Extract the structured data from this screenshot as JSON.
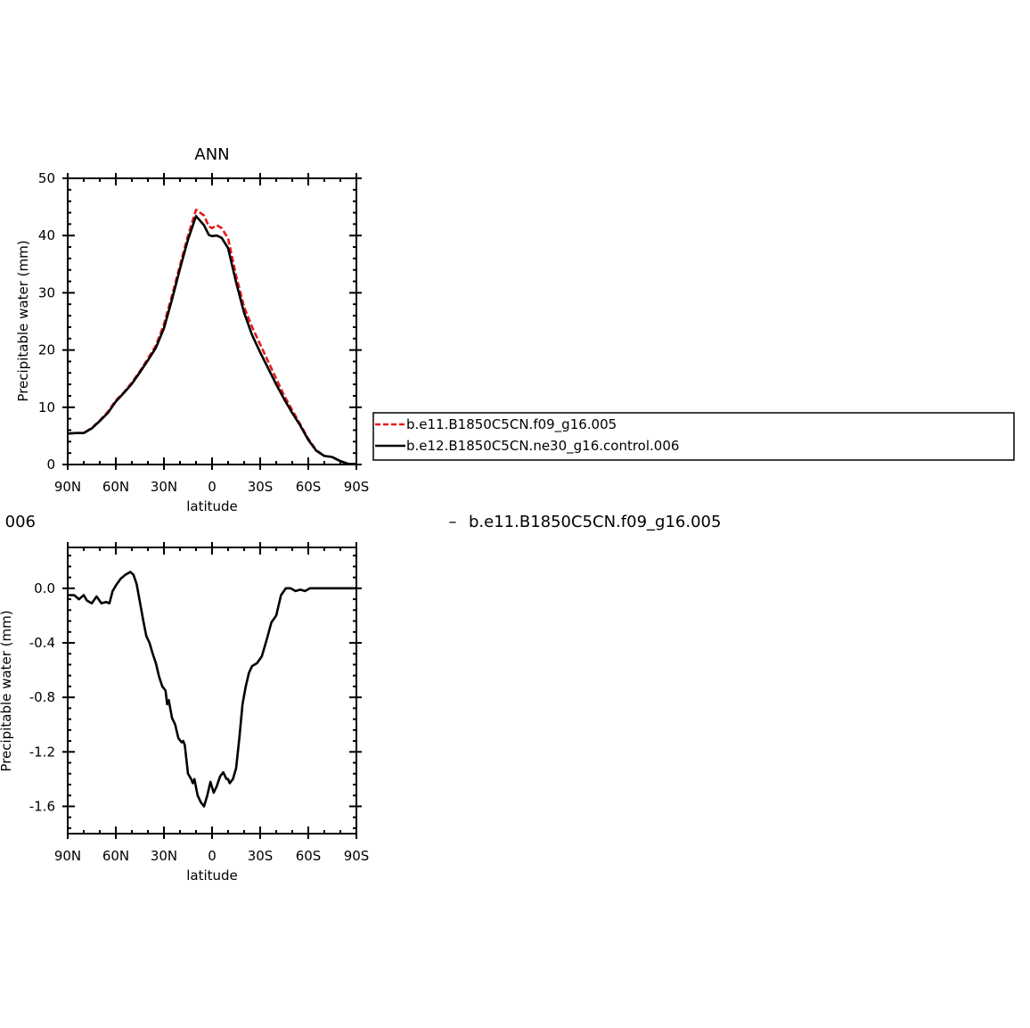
{
  "chart_data": [
    {
      "type": "line",
      "title": "ANN",
      "xlabel": "latitude",
      "ylabel": "Precipitable water (mm)",
      "xlim": [
        90,
        -90
      ],
      "ylim": [
        0,
        50
      ],
      "x_ticks": [
        90,
        60,
        30,
        0,
        -30,
        -60,
        -90
      ],
      "x_tick_labels": [
        "90N",
        "60N",
        "30N",
        "0",
        "30S",
        "60S",
        "90S"
      ],
      "y_ticks": [
        0,
        10,
        20,
        30,
        40,
        50
      ],
      "y_tick_labels": [
        "0",
        "10",
        "20",
        "30",
        "40",
        "50"
      ],
      "legend": {
        "placement": "right",
        "entries": [
          "b.e11.B1850C5CN.f09_g16.005",
          "b.e12.B1850C5CN.ne30_g16.control.006"
        ]
      },
      "series": [
        {
          "name": "b.e11.B1850C5CN.f09_g16.005",
          "color": "#e41a1c",
          "dash": "dashed",
          "x": [
            90,
            85,
            80,
            75,
            70,
            65,
            60,
            55,
            50,
            45,
            40,
            35,
            30,
            25,
            20,
            15,
            10,
            5,
            2,
            0,
            -3,
            -6,
            -10,
            -15,
            -20,
            -25,
            -30,
            -35,
            -40,
            -45,
            -50,
            -55,
            -60,
            -65,
            -70,
            -75,
            -80,
            -85,
            -90
          ],
          "y": [
            5.4,
            5.5,
            5.5,
            6.4,
            7.7,
            9.2,
            11.2,
            12.6,
            14.3,
            16.3,
            18.5,
            20.8,
            24.5,
            29.5,
            34.8,
            40.0,
            44.5,
            43.5,
            41.6,
            41.3,
            41.8,
            41.3,
            39.5,
            33.0,
            27.5,
            24.0,
            21.0,
            18.0,
            15.0,
            12.0,
            9.5,
            7.0,
            4.5,
            2.5,
            1.5,
            1.3,
            0.6,
            0.1,
            0.1
          ]
        },
        {
          "name": "b.e12.B1850C5CN.ne30_g16.control.006",
          "color": "#000000",
          "dash": "solid",
          "x": [
            90,
            85,
            80,
            75,
            70,
            65,
            60,
            55,
            50,
            45,
            40,
            35,
            30,
            25,
            20,
            15,
            10,
            5,
            2,
            0,
            -3,
            -6,
            -10,
            -15,
            -20,
            -25,
            -30,
            -35,
            -40,
            -45,
            -50,
            -55,
            -60,
            -65,
            -70,
            -75,
            -80,
            -85,
            -90
          ],
          "y": [
            5.4,
            5.5,
            5.5,
            6.3,
            7.6,
            9.0,
            11.0,
            12.5,
            14.1,
            16.1,
            18.2,
            20.4,
            23.8,
            28.8,
            34.2,
            39.3,
            43.4,
            41.8,
            40.1,
            39.9,
            40.0,
            39.6,
            37.8,
            31.8,
            26.5,
            22.6,
            19.6,
            16.8,
            14.0,
            11.4,
            9.0,
            6.8,
            4.3,
            2.4,
            1.5,
            1.3,
            0.6,
            0.1,
            0.1
          ]
        }
      ]
    },
    {
      "type": "line",
      "title": "b.e11.B1850C5CN.f09_g16.005",
      "title_prefix": "–",
      "left_title": "006",
      "xlabel": "latitude",
      "ylabel": "Precipitable water (mm)",
      "xlim": [
        90,
        -90
      ],
      "ylim": [
        -1.8,
        0.3
      ],
      "x_ticks": [
        90,
        60,
        30,
        0,
        -30,
        -60,
        -90
      ],
      "x_tick_labels": [
        "90N",
        "60N",
        "30N",
        "0",
        "30S",
        "60S",
        "90S"
      ],
      "y_ticks": [
        0.0,
        -0.4,
        -0.8,
        -1.2,
        -1.6
      ],
      "y_tick_labels": [
        "0.0",
        "-0.4",
        "-0.8",
        "-1.2",
        "-1.6"
      ],
      "series": [
        {
          "name": "",
          "color": "#000000",
          "dash": "solid",
          "x": [
            90,
            86,
            83,
            80,
            78,
            75,
            72,
            69,
            66,
            64,
            62,
            60,
            57,
            54,
            51,
            49,
            47,
            45,
            43,
            41,
            39,
            37,
            35,
            33,
            31,
            29,
            28,
            27,
            25,
            23,
            21,
            19,
            18,
            17,
            15,
            13,
            12,
            11,
            9,
            7,
            5,
            3,
            1,
            -1,
            -3,
            -5,
            -7,
            -9,
            -10,
            -11,
            -13,
            -15,
            -17,
            -19,
            -21,
            -23,
            -25,
            -28,
            -31,
            -34,
            -37,
            -40,
            -43,
            -46,
            -49,
            -52,
            -55,
            -58,
            -61,
            -64,
            -67,
            -70,
            -73,
            -76,
            -79,
            -82,
            -85,
            -88,
            -90
          ],
          "y": [
            -0.05,
            -0.05,
            -0.08,
            -0.05,
            -0.09,
            -0.11,
            -0.06,
            -0.11,
            -0.1,
            -0.11,
            -0.02,
            0.02,
            0.07,
            0.1,
            0.12,
            0.1,
            0.03,
            -0.1,
            -0.23,
            -0.35,
            -0.4,
            -0.48,
            -0.55,
            -0.65,
            -0.72,
            -0.75,
            -0.85,
            -0.82,
            -0.95,
            -1.0,
            -1.1,
            -1.13,
            -1.12,
            -1.15,
            -1.36,
            -1.4,
            -1.43,
            -1.4,
            -1.52,
            -1.57,
            -1.6,
            -1.52,
            -1.42,
            -1.5,
            -1.45,
            -1.38,
            -1.35,
            -1.4,
            -1.4,
            -1.43,
            -1.4,
            -1.32,
            -1.1,
            -0.85,
            -0.72,
            -0.62,
            -0.57,
            -0.55,
            -0.5,
            -0.38,
            -0.25,
            -0.2,
            -0.05,
            0.0,
            0.0,
            -0.02,
            -0.01,
            -0.02,
            0.0,
            0.0,
            0.0,
            0.0,
            0.0,
            0.0,
            0.0,
            0.0,
            0.0,
            0.0,
            0.0
          ]
        }
      ]
    }
  ],
  "colors": {
    "control": "#000000",
    "f09": "#e41a1c"
  }
}
